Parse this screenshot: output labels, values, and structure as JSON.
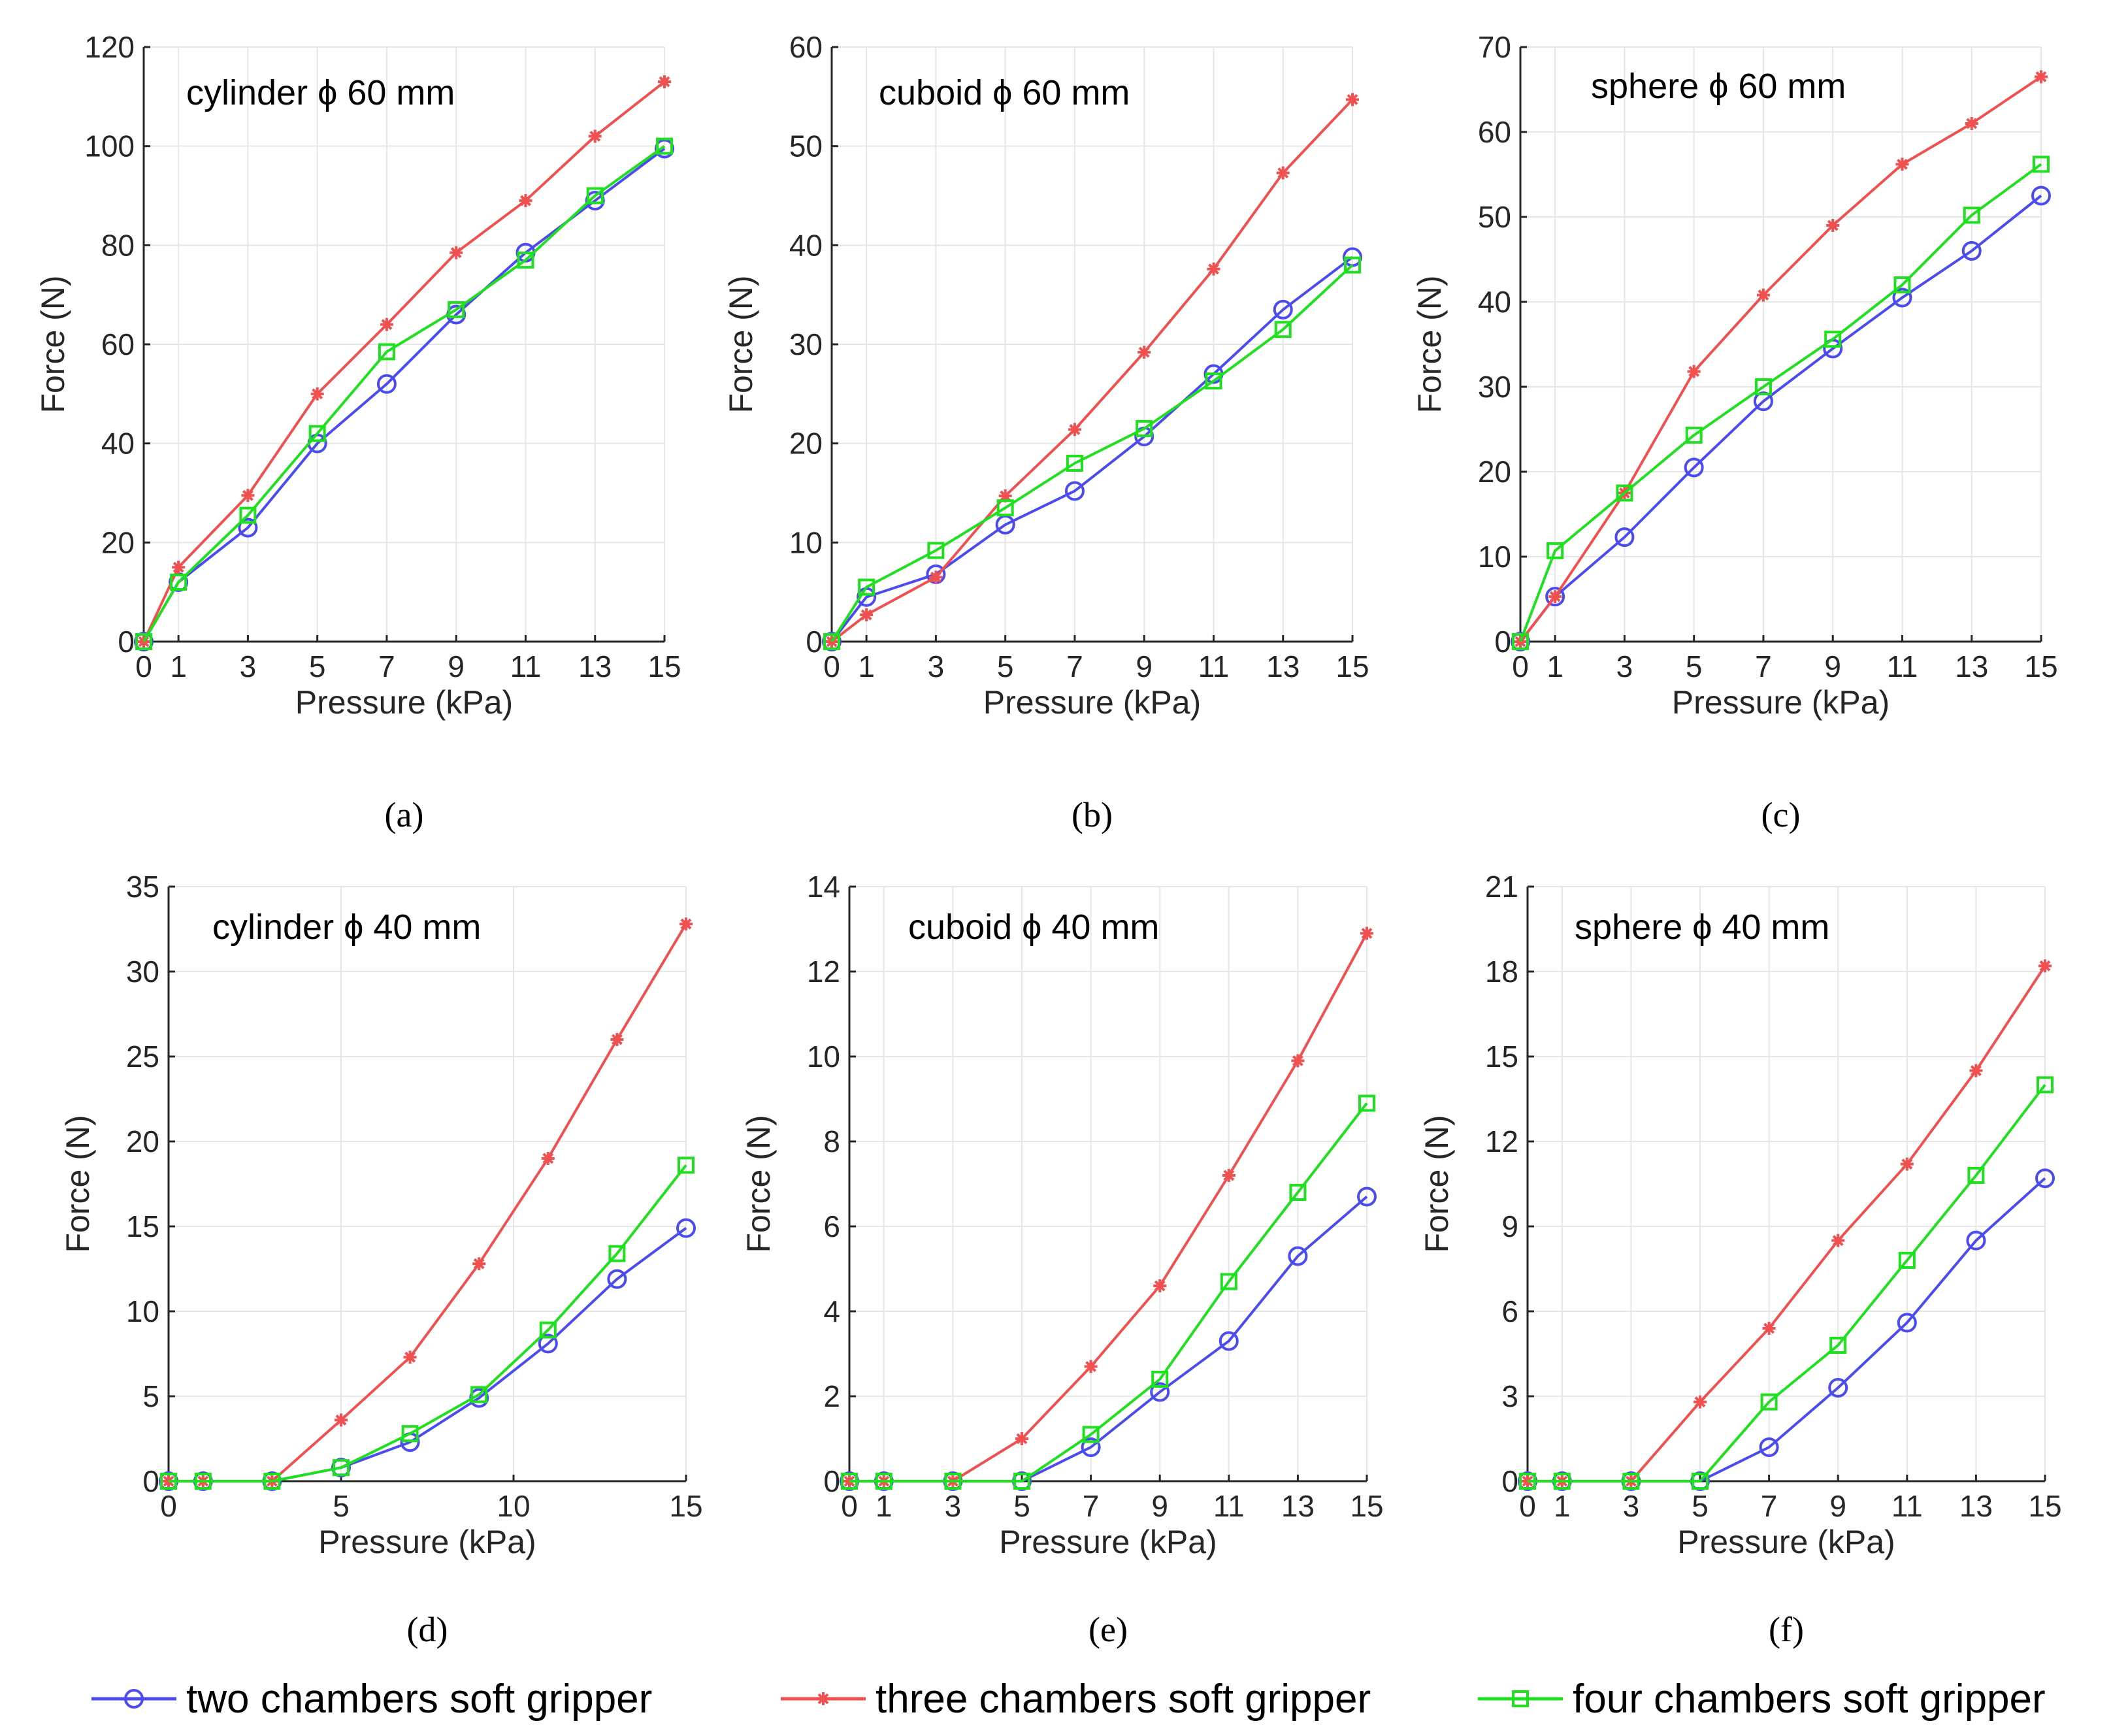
{
  "colors": {
    "two": "#4b4bf0",
    "three": "#f05050",
    "four": "#1ee01e",
    "axis": "#262626",
    "grid": "#e6e6e6"
  },
  "legend": [
    {
      "key": "two",
      "label": "two chambers soft gripper",
      "marker": "circle"
    },
    {
      "key": "three",
      "label": "three chambers soft gripper",
      "marker": "star"
    },
    {
      "key": "four",
      "label": "four chambers soft gripper",
      "marker": "square"
    }
  ],
  "chart_data": [
    {
      "type": "line",
      "panel_label": "(a)",
      "title": "cylinder ϕ 60 mm",
      "xlabel": "Pressure (kPa)",
      "ylabel": "Force (N)",
      "xlim": [
        0,
        15
      ],
      "ylim": [
        0,
        120
      ],
      "xticks": [
        0,
        1,
        3,
        5,
        7,
        9,
        11,
        13,
        15
      ],
      "yticks": [
        0,
        20,
        40,
        60,
        80,
        100,
        120
      ],
      "x": [
        0,
        1,
        3,
        5,
        7,
        9,
        11,
        13,
        15
      ],
      "series": [
        {
          "key": "two",
          "name": "two chambers soft gripper",
          "values": [
            0,
            12,
            23,
            40,
            52,
            66,
            78.5,
            89,
            99.5
          ]
        },
        {
          "key": "three",
          "name": "three chambers soft gripper",
          "values": [
            0,
            15,
            29.5,
            50,
            64,
            78.5,
            89,
            102,
            113
          ]
        },
        {
          "key": "four",
          "name": "four chambers soft gripper",
          "values": [
            0,
            12,
            25.5,
            42,
            58.5,
            67,
            77,
            90,
            100
          ]
        }
      ]
    },
    {
      "type": "line",
      "panel_label": "(b)",
      "title": "cuboid ϕ 60 mm",
      "xlabel": "Pressure (kPa)",
      "ylabel": "Force (N)",
      "xlim": [
        0,
        15
      ],
      "ylim": [
        0,
        60
      ],
      "xticks": [
        0,
        1,
        3,
        5,
        7,
        9,
        11,
        13,
        15
      ],
      "yticks": [
        0,
        10,
        20,
        30,
        40,
        50,
        60
      ],
      "x": [
        0,
        1,
        3,
        5,
        7,
        9,
        11,
        13,
        15
      ],
      "series": [
        {
          "key": "two",
          "name": "two chambers soft gripper",
          "values": [
            0,
            4.5,
            6.8,
            11.8,
            15.2,
            20.7,
            27,
            33.5,
            38.8
          ]
        },
        {
          "key": "three",
          "name": "three chambers soft gripper",
          "values": [
            0,
            2.7,
            6.5,
            14.7,
            21.4,
            29.2,
            37.6,
            47.3,
            54.7
          ]
        },
        {
          "key": "four",
          "name": "four chambers soft gripper",
          "values": [
            0,
            5.5,
            9.2,
            13.5,
            18,
            21.5,
            26.3,
            31.5,
            38
          ]
        }
      ]
    },
    {
      "type": "line",
      "panel_label": "(c)",
      "title": "sphere ϕ 60 mm",
      "xlabel": "Pressure (kPa)",
      "ylabel": "Force (N)",
      "xlim": [
        0,
        15
      ],
      "ylim": [
        0,
        70
      ],
      "xticks": [
        0,
        1,
        3,
        5,
        7,
        9,
        11,
        13,
        15
      ],
      "yticks": [
        0,
        10,
        20,
        30,
        40,
        50,
        60,
        70
      ],
      "x": [
        0,
        1,
        3,
        5,
        7,
        9,
        11,
        13,
        15
      ],
      "series": [
        {
          "key": "two",
          "name": "two chambers soft gripper",
          "values": [
            0,
            5.3,
            12.3,
            20.5,
            28.3,
            34.5,
            40.5,
            46,
            52.5
          ]
        },
        {
          "key": "three",
          "name": "three chambers soft gripper",
          "values": [
            0,
            5.3,
            17.5,
            31.8,
            40.8,
            49,
            56.2,
            61,
            66.5
          ]
        },
        {
          "key": "four",
          "name": "four chambers soft gripper",
          "values": [
            0,
            10.7,
            17.5,
            24.3,
            30,
            35.6,
            42,
            50.2,
            56.2
          ]
        }
      ]
    },
    {
      "type": "line",
      "panel_label": "(d)",
      "title": "cylinder ϕ 40 mm",
      "xlabel": "Pressure (kPa)",
      "ylabel": "Force (N)",
      "xlim": [
        0,
        15
      ],
      "ylim": [
        0,
        35
      ],
      "xticks": [
        0,
        5,
        10,
        15
      ],
      "yticks": [
        0,
        5,
        10,
        15,
        20,
        25,
        30,
        35
      ],
      "x": [
        0,
        1,
        3,
        5,
        7,
        9,
        11,
        13,
        15
      ],
      "series": [
        {
          "key": "two",
          "name": "two chambers soft gripper",
          "values": [
            0,
            0,
            0,
            0.8,
            2.3,
            4.9,
            8.1,
            11.9,
            14.9
          ]
        },
        {
          "key": "three",
          "name": "three chambers soft gripper",
          "values": [
            0,
            0,
            0,
            3.6,
            7.3,
            12.8,
            19,
            26,
            32.8
          ]
        },
        {
          "key": "four",
          "name": "four chambers soft gripper",
          "values": [
            0,
            0,
            0,
            0.8,
            2.8,
            5.1,
            8.9,
            13.4,
            18.6
          ]
        }
      ]
    },
    {
      "type": "line",
      "panel_label": "(e)",
      "title": "cuboid ϕ 40 mm",
      "xlabel": "Pressure (kPa)",
      "ylabel": "Force (N)",
      "xlim": [
        0,
        15
      ],
      "ylim": [
        0,
        14
      ],
      "xticks": [
        0,
        1,
        3,
        5,
        7,
        9,
        11,
        13,
        15
      ],
      "yticks": [
        0,
        2,
        4,
        6,
        8,
        10,
        12,
        14
      ],
      "x": [
        0,
        1,
        3,
        5,
        7,
        9,
        11,
        13,
        15
      ],
      "series": [
        {
          "key": "two",
          "name": "two chambers soft gripper",
          "values": [
            0,
            0,
            0,
            0,
            0.8,
            2.1,
            3.3,
            5.3,
            6.7
          ]
        },
        {
          "key": "three",
          "name": "three chambers soft gripper",
          "values": [
            0,
            0,
            0,
            1,
            2.7,
            4.6,
            7.2,
            9.9,
            12.9
          ]
        },
        {
          "key": "four",
          "name": "four chambers soft gripper",
          "values": [
            0,
            0,
            0,
            0,
            1.1,
            2.4,
            4.7,
            6.8,
            8.9
          ]
        }
      ]
    },
    {
      "type": "line",
      "panel_label": "(f)",
      "title": "sphere ϕ 40 mm",
      "xlabel": "Pressure (kPa)",
      "ylabel": "Force (N)",
      "xlim": [
        0,
        15
      ],
      "ylim": [
        0,
        21
      ],
      "xticks": [
        0,
        1,
        3,
        5,
        7,
        9,
        11,
        13,
        15
      ],
      "yticks": [
        0,
        3,
        6,
        9,
        12,
        15,
        18,
        21
      ],
      "x": [
        0,
        1,
        3,
        5,
        7,
        9,
        11,
        13,
        15
      ],
      "series": [
        {
          "key": "two",
          "name": "two chambers soft gripper",
          "values": [
            0,
            0,
            0,
            0,
            1.2,
            3.3,
            5.6,
            8.5,
            10.7
          ]
        },
        {
          "key": "three",
          "name": "three chambers soft gripper",
          "values": [
            0,
            0,
            0,
            2.8,
            5.4,
            8.5,
            11.2,
            14.5,
            18.2
          ]
        },
        {
          "key": "four",
          "name": "four chambers soft gripper",
          "values": [
            0,
            0,
            0,
            0,
            2.8,
            4.8,
            7.8,
            10.8,
            14
          ]
        }
      ]
    }
  ]
}
